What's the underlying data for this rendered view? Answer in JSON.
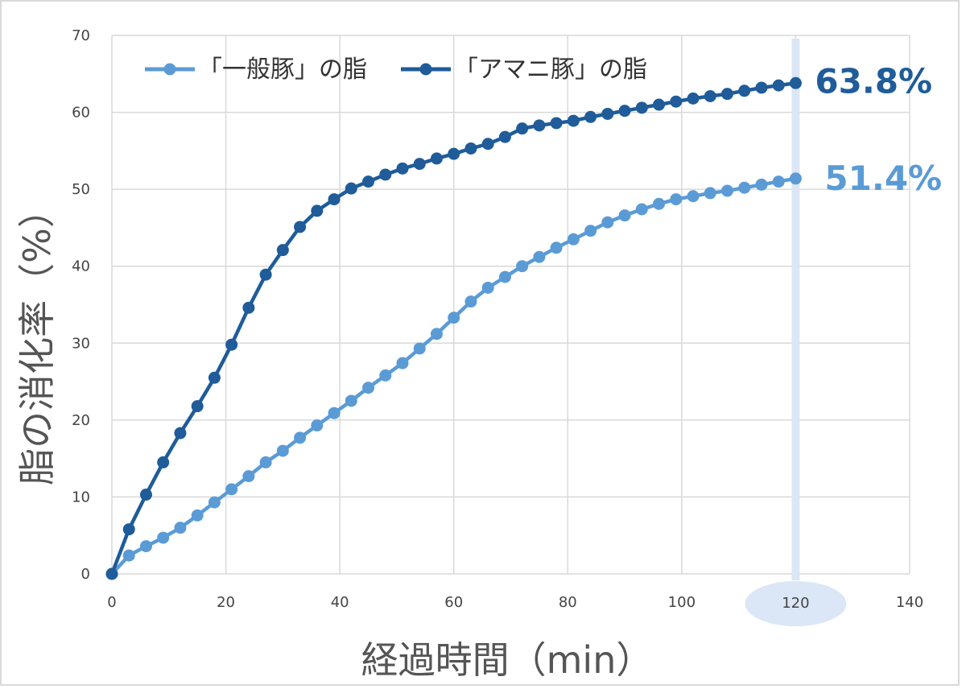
{
  "chart_data": {
    "type": "line",
    "xlabel": "経過時間（min）",
    "ylabel": "脂の消化率（%）",
    "xlim": [
      0,
      140
    ],
    "ylim": [
      0,
      70
    ],
    "xticks": [
      "0",
      "20",
      "40",
      "60",
      "80",
      "100",
      "120",
      "140"
    ],
    "yticks": [
      "0",
      "10",
      "20",
      "30",
      "40",
      "50",
      "60",
      "70"
    ],
    "grid": true,
    "legend_position": "top-left",
    "highlight_x": 120,
    "highlight_tick": "120",
    "x": [
      0,
      3,
      6,
      9,
      12,
      15,
      18,
      21,
      24,
      27,
      30,
      33,
      36,
      39,
      42,
      45,
      48,
      51,
      54,
      57,
      60,
      63,
      66,
      69,
      72,
      75,
      78,
      81,
      84,
      87,
      90,
      93,
      96,
      99,
      102,
      105,
      108,
      111,
      114,
      117,
      120
    ],
    "series": [
      {
        "name": "「一般豚」の脂",
        "color": "#5B9BD5",
        "end_label": "51.4%",
        "values": [
          0,
          2.4,
          3.6,
          4.7,
          6.0,
          7.6,
          9.3,
          11.0,
          12.7,
          14.5,
          16.0,
          17.7,
          19.3,
          20.9,
          22.5,
          24.2,
          25.8,
          27.4,
          29.3,
          31.2,
          33.3,
          35.4,
          37.2,
          38.6,
          40.0,
          41.2,
          42.4,
          43.5,
          44.6,
          45.7,
          46.6,
          47.4,
          48.1,
          48.7,
          49.1,
          49.5,
          49.8,
          50.2,
          50.6,
          51.0,
          51.4
        ]
      },
      {
        "name": "「アマニ豚」の脂",
        "color": "#1F5C99",
        "end_label": "63.8%",
        "values": [
          0,
          5.8,
          10.3,
          14.5,
          18.3,
          21.8,
          25.5,
          29.8,
          34.6,
          38.9,
          42.1,
          45.1,
          47.2,
          48.7,
          50.1,
          51.0,
          51.9,
          52.7,
          53.3,
          54.0,
          54.6,
          55.3,
          55.9,
          56.8,
          57.9,
          58.3,
          58.6,
          58.9,
          59.4,
          59.8,
          60.2,
          60.6,
          61.0,
          61.4,
          61.8,
          62.1,
          62.4,
          62.8,
          63.2,
          63.5,
          63.8
        ]
      }
    ]
  }
}
